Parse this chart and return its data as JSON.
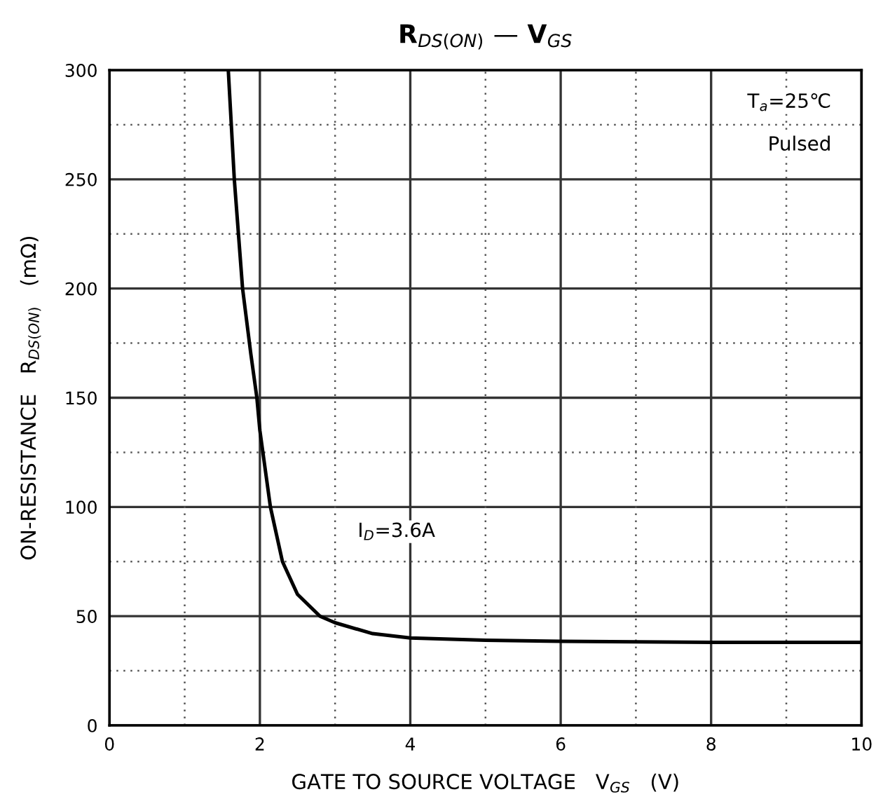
{
  "chart_data": {
    "type": "line",
    "title": "R$_{DS(ON)}$ — V$_{GS}$",
    "xlabel": "GATE TO SOURCE VOLTAGE   V$_{GS}$   (V)",
    "ylabel": "ON-RESISTANCE   R$_{DS(ON)}$   (mΩ)",
    "series": [
      {
        "color": "#000000",
        "x": [
          1.58,
          1.66,
          1.77,
          1.88,
          1.96,
          2.0,
          2.14,
          2.3,
          2.5,
          2.8,
          3.0,
          3.5,
          4,
          5,
          6,
          8,
          10
        ],
        "values": [
          300,
          250,
          200,
          170,
          150,
          135,
          100,
          75,
          60,
          50,
          47,
          42,
          40,
          39,
          38.5,
          38,
          38
        ]
      }
    ],
    "annotations": [
      "T$_{a}$=25℃",
      "Pulsed",
      "I$_{D}$=3.6A"
    ],
    "xlim": [
      0,
      10
    ],
    "xticks": [
      0,
      2,
      4,
      6,
      8,
      10
    ],
    "ylim": [
      0,
      300
    ],
    "yticks": [
      0,
      50,
      100,
      150,
      200,
      250,
      300
    ],
    "grid": true,
    "marker": "none",
    "line_style": "solid",
    "legend": false
  }
}
